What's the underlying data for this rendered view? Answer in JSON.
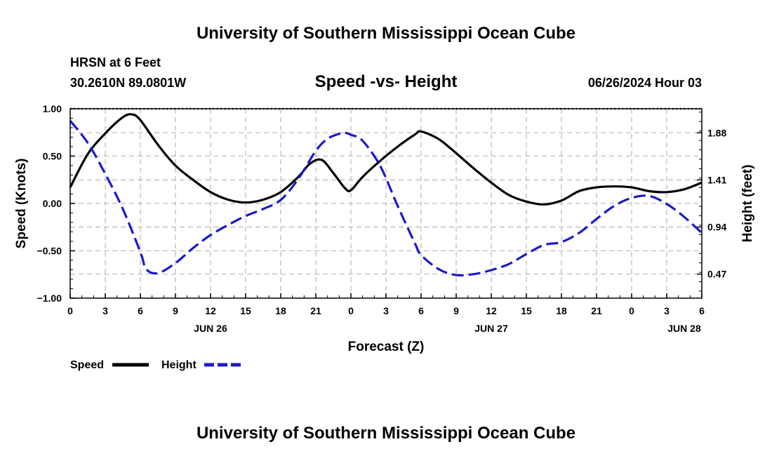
{
  "page": {
    "title_top": "University of Southern Mississippi Ocean Cube",
    "title_bottom": "University of Southern Mississippi Ocean Cube",
    "station": "HRSN at 6 Feet",
    "coords": "30.2610N  89.0801W",
    "chart_title": "Speed -vs- Height",
    "timestamp": "06/26/2024 Hour 03"
  },
  "chart_data": {
    "type": "line",
    "title": "Speed -vs- Height",
    "xlabel": "Forecast (Z)",
    "ylabel_left": "Speed (Knots)",
    "ylabel_right": "Height (feet)",
    "x_unit": "hours since 00Z JUN 26",
    "xlim": [
      0,
      54
    ],
    "ylim_left": [
      -1.0,
      1.0
    ],
    "ylim_right": [
      0.23,
      2.12
    ],
    "grid": true,
    "x_ticks": [
      0,
      3,
      6,
      9,
      12,
      15,
      18,
      21,
      24,
      27,
      30,
      33,
      36,
      39,
      42,
      45,
      48,
      51,
      54
    ],
    "x_tick_labels": [
      "0",
      "3",
      "6",
      "9",
      "12",
      "15",
      "18",
      "21",
      "0",
      "3",
      "6",
      "9",
      "12",
      "15",
      "18",
      "21",
      "0",
      "3",
      "6"
    ],
    "date_labels": [
      {
        "x": 12,
        "label": "JUN 26"
      },
      {
        "x": 36,
        "label": "JUN 27"
      },
      {
        "x": 52.5,
        "label": "JUN 28"
      }
    ],
    "y_ticks_left": [
      1.0,
      0.5,
      0.0,
      -0.5,
      -1.0
    ],
    "y_tick_labels_left": [
      "1.00",
      "0.50",
      "0.00",
      "−0.50",
      "−1.00"
    ],
    "y_ticks_right": [
      1.88,
      1.41,
      0.94,
      0.47
    ],
    "y_tick_labels_right": [
      "1.88",
      "1.41",
      "0.94",
      "0.47"
    ],
    "series": [
      {
        "name": "Speed",
        "axis": "left",
        "color": "#000000",
        "dashed": false,
        "x": [
          0,
          1.5,
          3,
          4.5,
          5.3,
          6,
          7.5,
          9,
          10.5,
          12,
          13.5,
          15,
          16.5,
          18,
          19.5,
          20.5,
          21.5,
          22.5,
          23.5,
          24,
          25,
          26.5,
          28,
          29.5,
          30,
          31.5,
          33,
          34.5,
          36,
          37.5,
          39,
          40.5,
          42,
          43.5,
          45,
          46.5,
          48,
          49.5,
          51,
          52.5,
          54
        ],
        "values": [
          0.17,
          0.52,
          0.74,
          0.91,
          0.94,
          0.88,
          0.62,
          0.4,
          0.25,
          0.12,
          0.04,
          0.01,
          0.04,
          0.12,
          0.28,
          0.42,
          0.46,
          0.32,
          0.16,
          0.14,
          0.28,
          0.45,
          0.6,
          0.73,
          0.76,
          0.68,
          0.53,
          0.37,
          0.22,
          0.09,
          0.02,
          -0.01,
          0.03,
          0.13,
          0.17,
          0.18,
          0.17,
          0.13,
          0.12,
          0.15,
          0.22
        ]
      },
      {
        "name": "Height",
        "axis": "right",
        "color": "#1a1acc",
        "dashed": true,
        "x": [
          0,
          1.5,
          3,
          4.5,
          6,
          6.5,
          7.5,
          9,
          10.5,
          12,
          13.5,
          15,
          16.5,
          18,
          19.5,
          21,
          22,
          23,
          23.5,
          24,
          25,
          26.5,
          28,
          29.5,
          30,
          31.5,
          33,
          34.5,
          36,
          37.5,
          39,
          40.5,
          42,
          43.5,
          45,
          46.5,
          48,
          49.5,
          51,
          52.5,
          54
        ],
        "values": [
          2.0,
          1.78,
          1.47,
          1.12,
          0.69,
          0.52,
          0.48,
          0.58,
          0.73,
          0.86,
          0.96,
          1.05,
          1.12,
          1.21,
          1.42,
          1.7,
          1.82,
          1.87,
          1.88,
          1.86,
          1.8,
          1.55,
          1.15,
          0.77,
          0.66,
          0.52,
          0.46,
          0.47,
          0.51,
          0.57,
          0.67,
          0.76,
          0.79,
          0.88,
          1.02,
          1.15,
          1.23,
          1.25,
          1.17,
          1.04,
          0.88
        ]
      }
    ],
    "legend": {
      "position": "bottom-left",
      "entries": [
        "Speed",
        "Height"
      ]
    }
  }
}
